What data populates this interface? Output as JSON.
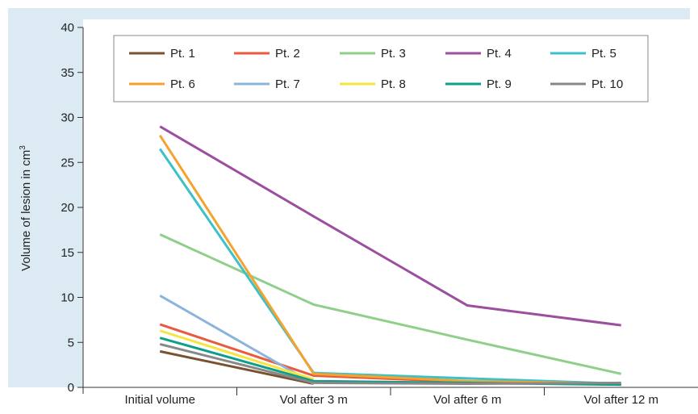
{
  "chart_data": {
    "type": "line",
    "title": "",
    "xlabel": "",
    "ylabel": "Volume of lesion in cm",
    "ylabel_sup": "3",
    "ylim": [
      0,
      40
    ],
    "yticks": [
      0,
      5,
      10,
      15,
      20,
      25,
      30,
      35,
      40
    ],
    "grid": "none",
    "legend_position": "top",
    "categories": [
      "Initial volume",
      "Vol after 3 m",
      "Vol after 6 m",
      "Vol after 12 m"
    ],
    "series": [
      {
        "name": "Pt. 1",
        "color": "#7a5230",
        "values": [
          4.0,
          0.4,
          null,
          null
        ]
      },
      {
        "name": "Pt. 2",
        "color": "#e85b3e",
        "values": [
          7.0,
          1.3,
          0.6,
          0.3
        ]
      },
      {
        "name": "Pt. 3",
        "color": "#8fcf8a",
        "values": [
          17.0,
          9.2,
          5.3,
          1.5
        ]
      },
      {
        "name": "Pt. 4",
        "color": "#9b4f9e",
        "values": [
          29.0,
          19.0,
          9.1,
          6.9
        ]
      },
      {
        "name": "Pt. 5",
        "color": "#3cc1c8",
        "values": [
          26.5,
          1.6,
          1.0,
          0.4
        ]
      },
      {
        "name": "Pt. 6",
        "color": "#f4a32f",
        "values": [
          28.0,
          1.5,
          0.7,
          0.4
        ]
      },
      {
        "name": "Pt. 7",
        "color": "#8cb4db",
        "values": [
          10.2,
          0.4,
          null,
          null
        ]
      },
      {
        "name": "Pt. 8",
        "color": "#f7e443",
        "values": [
          6.3,
          0.9,
          null,
          null
        ]
      },
      {
        "name": "Pt. 9",
        "color": "#0f9e8a",
        "values": [
          5.5,
          0.7,
          0.5,
          0.3
        ]
      },
      {
        "name": "Pt. 10",
        "color": "#888888",
        "values": [
          4.8,
          0.5,
          0.4,
          0.5
        ]
      }
    ]
  }
}
